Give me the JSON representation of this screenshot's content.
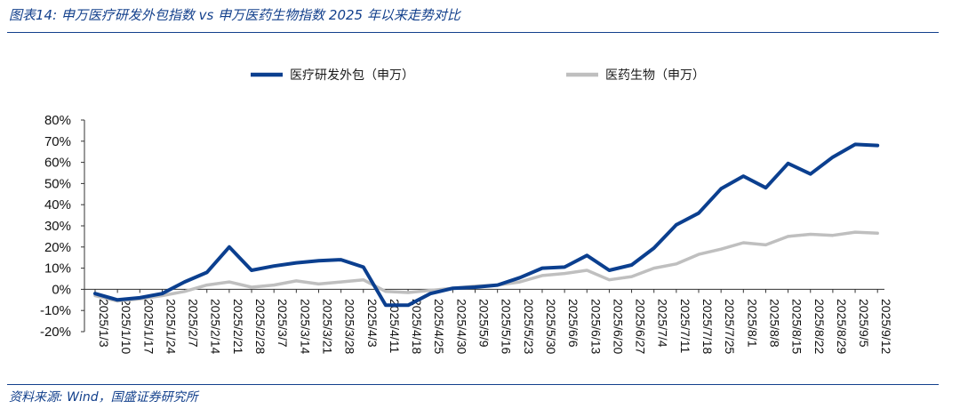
{
  "header": {
    "title": "图表14:  申万医疗研发外包指数 vs 申万医药生物指数 2025 年以来走势对比"
  },
  "footer": {
    "source": "资料来源:  Wind，国盛证券研究所"
  },
  "chart_data": {
    "type": "line",
    "x": [
      "2025/1/3",
      "2025/1/10",
      "2025/1/17",
      "2025/1/24",
      "2025/2/7",
      "2025/2/14",
      "2025/2/21",
      "2025/2/28",
      "2025/3/7",
      "2025/3/14",
      "2025/3/21",
      "2025/3/28",
      "2025/4/3",
      "2025/4/11",
      "2025/4/18",
      "2025/4/25",
      "2025/4/30",
      "2025/5/9",
      "2025/5/16",
      "2025/5/23",
      "2025/5/30",
      "2025/6/6",
      "2025/6/13",
      "2025/6/20",
      "2025/6/27",
      "2025/7/4",
      "2025/7/11",
      "2025/7/18",
      "2025/7/25",
      "2025/8/1",
      "2025/8/8",
      "2025/8/15",
      "2025/8/22",
      "2025/8/29",
      "2025/9/5",
      "2025/9/12"
    ],
    "series": [
      {
        "name": "医疗研发外包（申万）",
        "color": "#0b3f8f",
        "values": [
          -2,
          -5,
          -4,
          -2,
          3.5,
          8,
          20,
          9,
          11,
          12.5,
          13.5,
          14,
          10.5,
          -7.5,
          -7.5,
          -2,
          0.5,
          1,
          2,
          5.5,
          10,
          10.5,
          16,
          9,
          11.5,
          19.5,
          30.5,
          36,
          47.5,
          53.5,
          48,
          59.5,
          54.5,
          62.5,
          68.5,
          68
        ]
      },
      {
        "name": "医药生物（申万）",
        "color": "#bfbfbf",
        "values": [
          -3,
          -5.5,
          -4.5,
          -3,
          -1,
          2,
          3.5,
          1,
          2,
          4,
          2.5,
          3.5,
          4.5,
          -1,
          -1.5,
          -0.5,
          0.5,
          1.5,
          2,
          3.5,
          6.5,
          7.5,
          9,
          4.5,
          6,
          10,
          12,
          16.5,
          19,
          22,
          21,
          25,
          26,
          25.5,
          27,
          26.5
        ]
      }
    ],
    "ylim": [
      -20,
      80
    ],
    "yticks": [
      -20,
      -10,
      0,
      10,
      20,
      30,
      40,
      50,
      60,
      70,
      80
    ],
    "ytick_labels": [
      "-20%",
      "-10%",
      "0%",
      "10%",
      "20%",
      "30%",
      "40%",
      "50%",
      "60%",
      "70%",
      "80%"
    ],
    "legend_position": "top",
    "grid": false
  }
}
